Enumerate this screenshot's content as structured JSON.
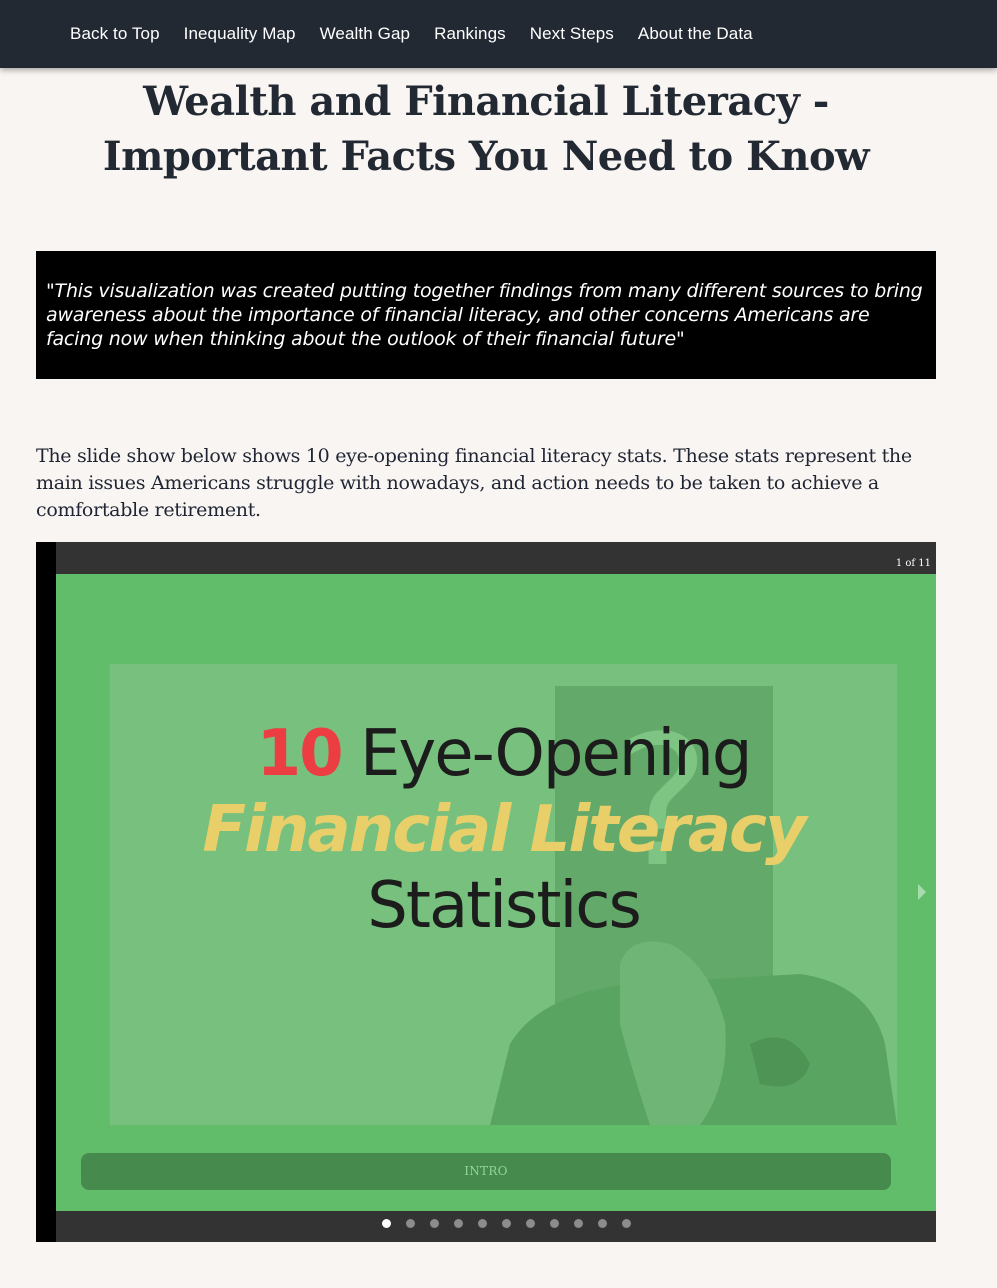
{
  "nav": {
    "items": [
      {
        "label": "Back to Top"
      },
      {
        "label": "Inequality Map"
      },
      {
        "label": "Wealth Gap"
      },
      {
        "label": "Rankings"
      },
      {
        "label": "Next Steps"
      },
      {
        "label": "About the Data"
      }
    ]
  },
  "page": {
    "title": "Wealth and Financial Literacy - Important Facts You Need to Know",
    "quote": "\"This visualization was created putting together findings from many different sources to bring awareness about the importance of financial literacy, and other concerns Americans are facing now when thinking about the outlook of their financial future\"",
    "intro": "The slide show below shows 10 eye-opening financial literacy stats. These stats represent the main issues Americans struggle with nowadays, and action needs to be taken to achieve a comfortable retirement."
  },
  "slideshow": {
    "counter": "1 of 11",
    "slide": {
      "heading_number": "10",
      "heading_line1": "Eye-Opening",
      "heading_line2": "Financial Literacy",
      "heading_line3": "Statistics",
      "caption": "INTRO"
    },
    "total_dots": 11,
    "active_dot": 1,
    "colors": {
      "slide_bg": "#62bd6a",
      "caption_bg": "#468a4e",
      "number_red": "#ec3d43",
      "literacy_yellow": "#e8cf6a"
    }
  }
}
